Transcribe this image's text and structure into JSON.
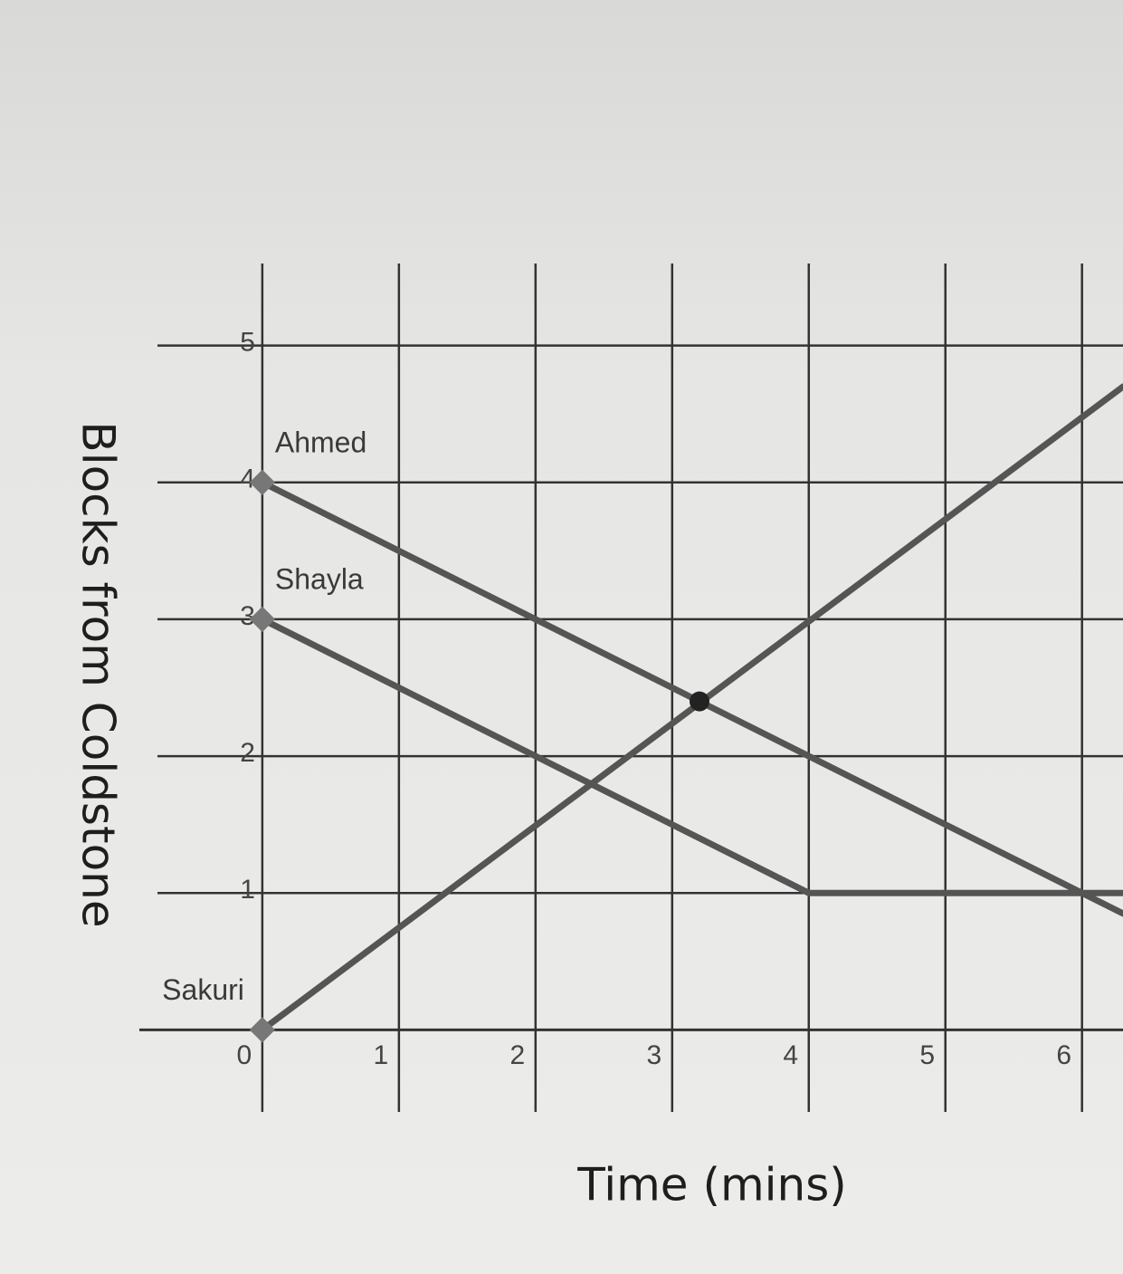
{
  "chart_data": {
    "type": "line",
    "x_label": "Time (mins)",
    "y_label": "Blocks from Coldstone",
    "xlim": [
      -0.9,
      6.3
    ],
    "ylim": [
      -0.6,
      5.6
    ],
    "xticks": [
      0,
      1,
      2,
      3,
      4,
      5,
      6
    ],
    "yticks": [
      1,
      2,
      3,
      4,
      5
    ],
    "grid": true,
    "color": "#555555",
    "series": [
      {
        "name": "Ahmed",
        "color": "#555555",
        "x": [
          0,
          6.3
        ],
        "values": [
          4,
          0.85
        ]
      },
      {
        "name": "Shayla",
        "color": "#555555",
        "x": [
          0,
          4,
          6.3
        ],
        "values": [
          3,
          1,
          1
        ]
      },
      {
        "name": "Sakuri",
        "color": "#555555",
        "x": [
          0,
          6.3
        ],
        "values": [
          0,
          4.7
        ]
      }
    ],
    "markers": [
      {
        "x": 3.2,
        "y": 2.4
      }
    ]
  }
}
